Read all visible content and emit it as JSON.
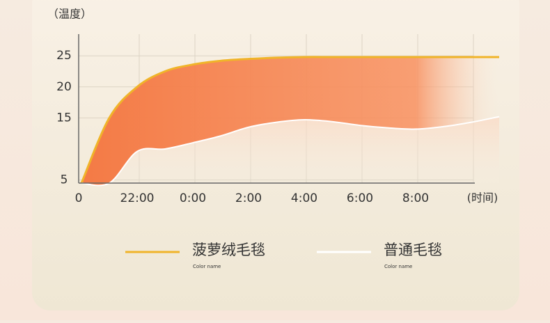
{
  "chart_data": {
    "type": "line",
    "y_label": "（温度）",
    "x_label": "(时间)",
    "categories": [
      "0",
      null,
      "22:00",
      null,
      "0:00",
      null,
      "2:00",
      null,
      "4:00",
      null,
      "6:00",
      null,
      "8:00",
      null,
      null,
      null
    ],
    "series": [
      {
        "name": "菠萝绒毛毯",
        "note": "Color name",
        "color": "#f0b429",
        "values": [
          4.5,
          15,
          20,
          22.5,
          23.6,
          24.2,
          24.5,
          24.7,
          24.8,
          24.8,
          24.8,
          24.8,
          24.8,
          24.8,
          24.8,
          24.8
        ]
      },
      {
        "name": "普通毛毯",
        "note": "Color name",
        "color": "#ffffff",
        "values": [
          4.5,
          4.5,
          9.6,
          10,
          11,
          12.1,
          13.5,
          14.3,
          14.7,
          14.4,
          13.8,
          13.4,
          13.2,
          13.6,
          14.3,
          15.2
        ]
      }
    ],
    "ylim": [
      4.5,
      28.5
    ],
    "yticks": [
      5,
      15,
      20,
      25
    ],
    "grid": true
  }
}
